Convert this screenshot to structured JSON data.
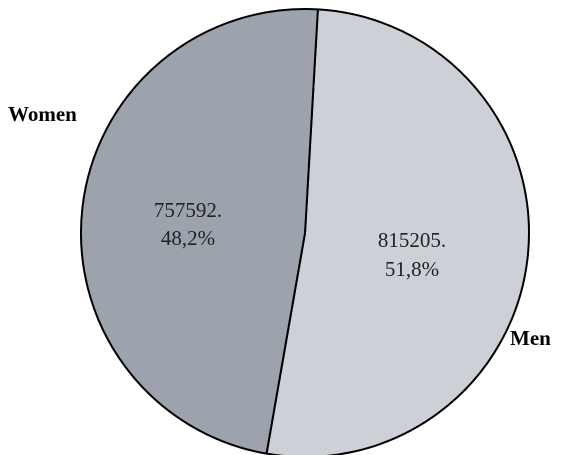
{
  "chart_data": {
    "type": "pie",
    "title": "",
    "slices": [
      {
        "category": "Men",
        "value": 815205,
        "value_text": "815205.",
        "percent_text": "51,8%",
        "color": "#cdd0d6"
      },
      {
        "category": "Women",
        "value": 757592,
        "value_text": "757592.",
        "percent_text": "48,2%",
        "color": "#9da3ad"
      }
    ],
    "outline_color": "#000000"
  }
}
